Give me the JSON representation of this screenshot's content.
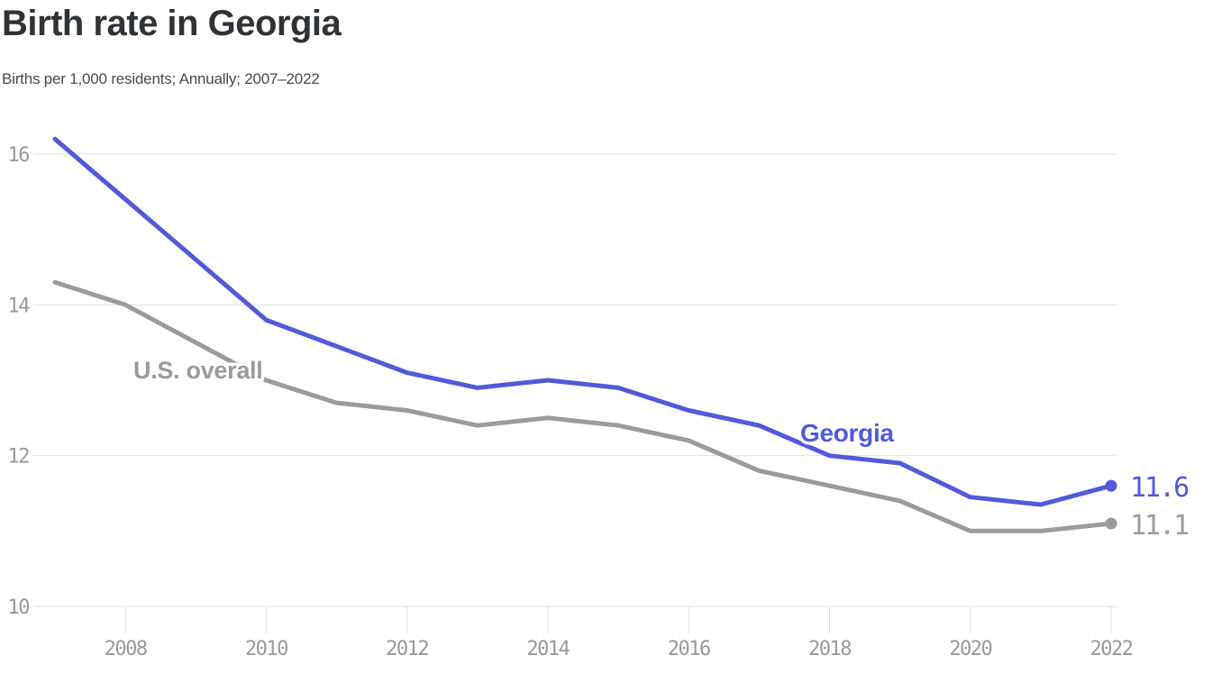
{
  "chart_data": {
    "type": "line",
    "title": "Birth rate in Georgia",
    "subtitle": "Births per 1,000 residents; Annually; 2007–2022",
    "x": [
      2007,
      2008,
      2009,
      2010,
      2011,
      2012,
      2013,
      2014,
      2015,
      2016,
      2017,
      2018,
      2019,
      2020,
      2021,
      2022
    ],
    "xticks": [
      2008,
      2010,
      2012,
      2014,
      2016,
      2018,
      2020,
      2022
    ],
    "yticks": [
      10,
      12,
      14,
      16
    ],
    "ylim": [
      10,
      16.4
    ],
    "xlabel": "",
    "ylabel": "",
    "grid": true,
    "legend_position": "inline-labels-on-lines",
    "series": [
      {
        "name": "Georgia",
        "color": "#4f5bdb",
        "values": [
          16.2,
          15.4,
          14.6,
          13.8,
          13.45,
          13.1,
          12.9,
          13.0,
          12.9,
          12.6,
          12.4,
          12.0,
          11.9,
          11.45,
          11.35,
          11.6
        ],
        "end_label": "11.6"
      },
      {
        "name": "U.S. overall",
        "color": "#9b9b9b",
        "values": [
          14.3,
          14.0,
          13.5,
          13.0,
          12.7,
          12.6,
          12.4,
          12.5,
          12.4,
          12.2,
          11.8,
          11.6,
          11.4,
          11.0,
          11.0,
          11.1
        ],
        "end_label": "11.1"
      }
    ]
  }
}
